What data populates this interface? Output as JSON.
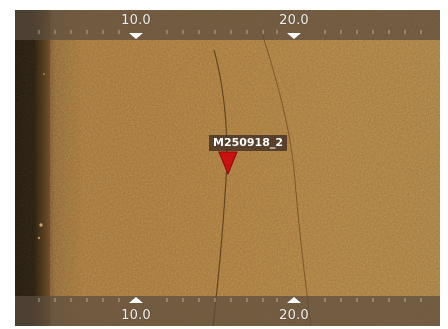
{
  "top_scale": {
    "ticks": [
      "10.0",
      "20.0"
    ],
    "marker_icon": "triangle-down-icon"
  },
  "bottom_scale": {
    "ticks": [
      "10.0",
      "20.0"
    ],
    "marker_icon": "triangle-up-icon"
  },
  "target": {
    "label": "M250918_2",
    "icon": "red-triangle-marker-icon",
    "color": "#cc1111"
  },
  "colors": {
    "sonar_base": "#b97f36",
    "nadir_dark": "#1f1a12",
    "ruler_text": "#f2f2f2"
  }
}
